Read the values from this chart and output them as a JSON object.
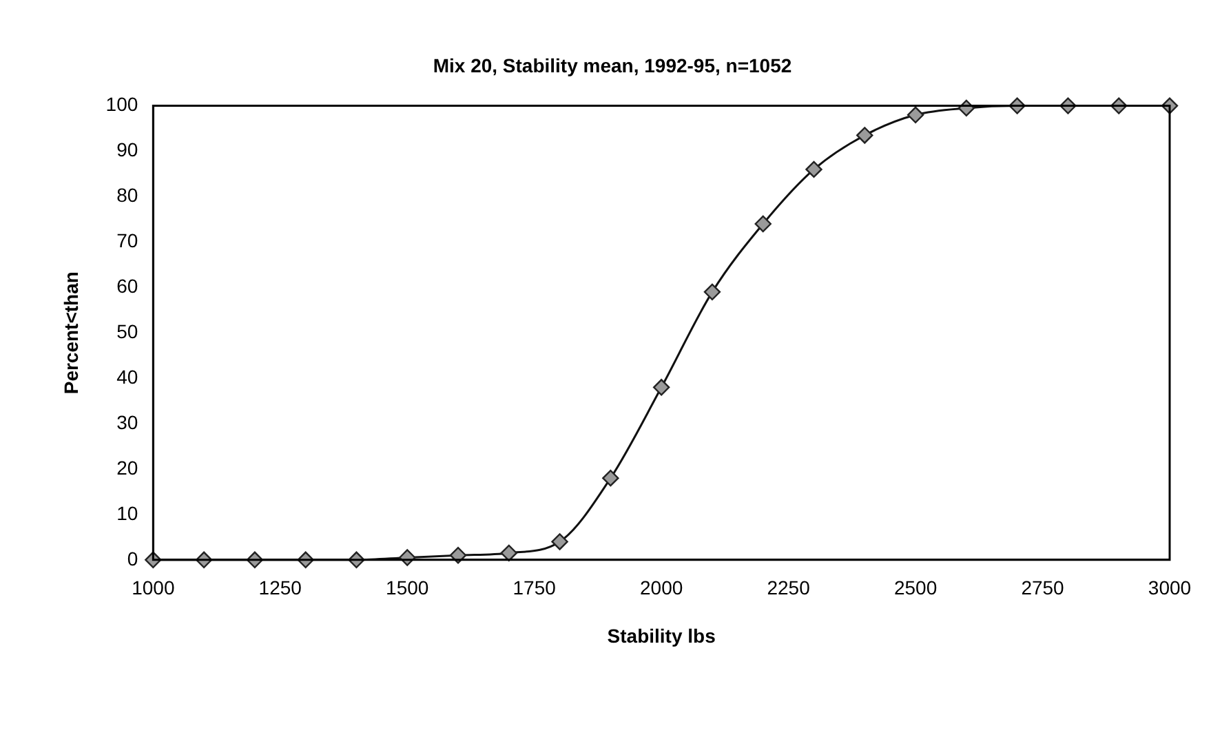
{
  "chart_data": {
    "type": "line",
    "title": "Mix 20, Stability mean, 1992-95, n=1052",
    "xlabel": "Stability lbs",
    "ylabel": "Percent<than",
    "x": [
      1000,
      1100,
      1200,
      1300,
      1400,
      1500,
      1600,
      1700,
      1800,
      1900,
      2000,
      2100,
      2200,
      2300,
      2400,
      2500,
      2600,
      2700,
      2800,
      2900,
      3000
    ],
    "series": [
      {
        "color": "#9a9a9a",
        "values": [
          0,
          0,
          0,
          0,
          0,
          0.5,
          1,
          1.5,
          4,
          18,
          38,
          59,
          74,
          86,
          93.5,
          98,
          99.5,
          100,
          100,
          100,
          100
        ]
      }
    ],
    "xlim": [
      1000,
      3000
    ],
    "xticks": [
      1000,
      1250,
      1500,
      1750,
      2000,
      2250,
      2500,
      2750,
      3000
    ],
    "ylim": [
      0,
      100
    ],
    "yticks": [
      0,
      10,
      20,
      30,
      40,
      50,
      60,
      70,
      80,
      90,
      100
    ],
    "grid": false,
    "legend": false,
    "marker": "diamond",
    "line_style": "solid"
  }
}
